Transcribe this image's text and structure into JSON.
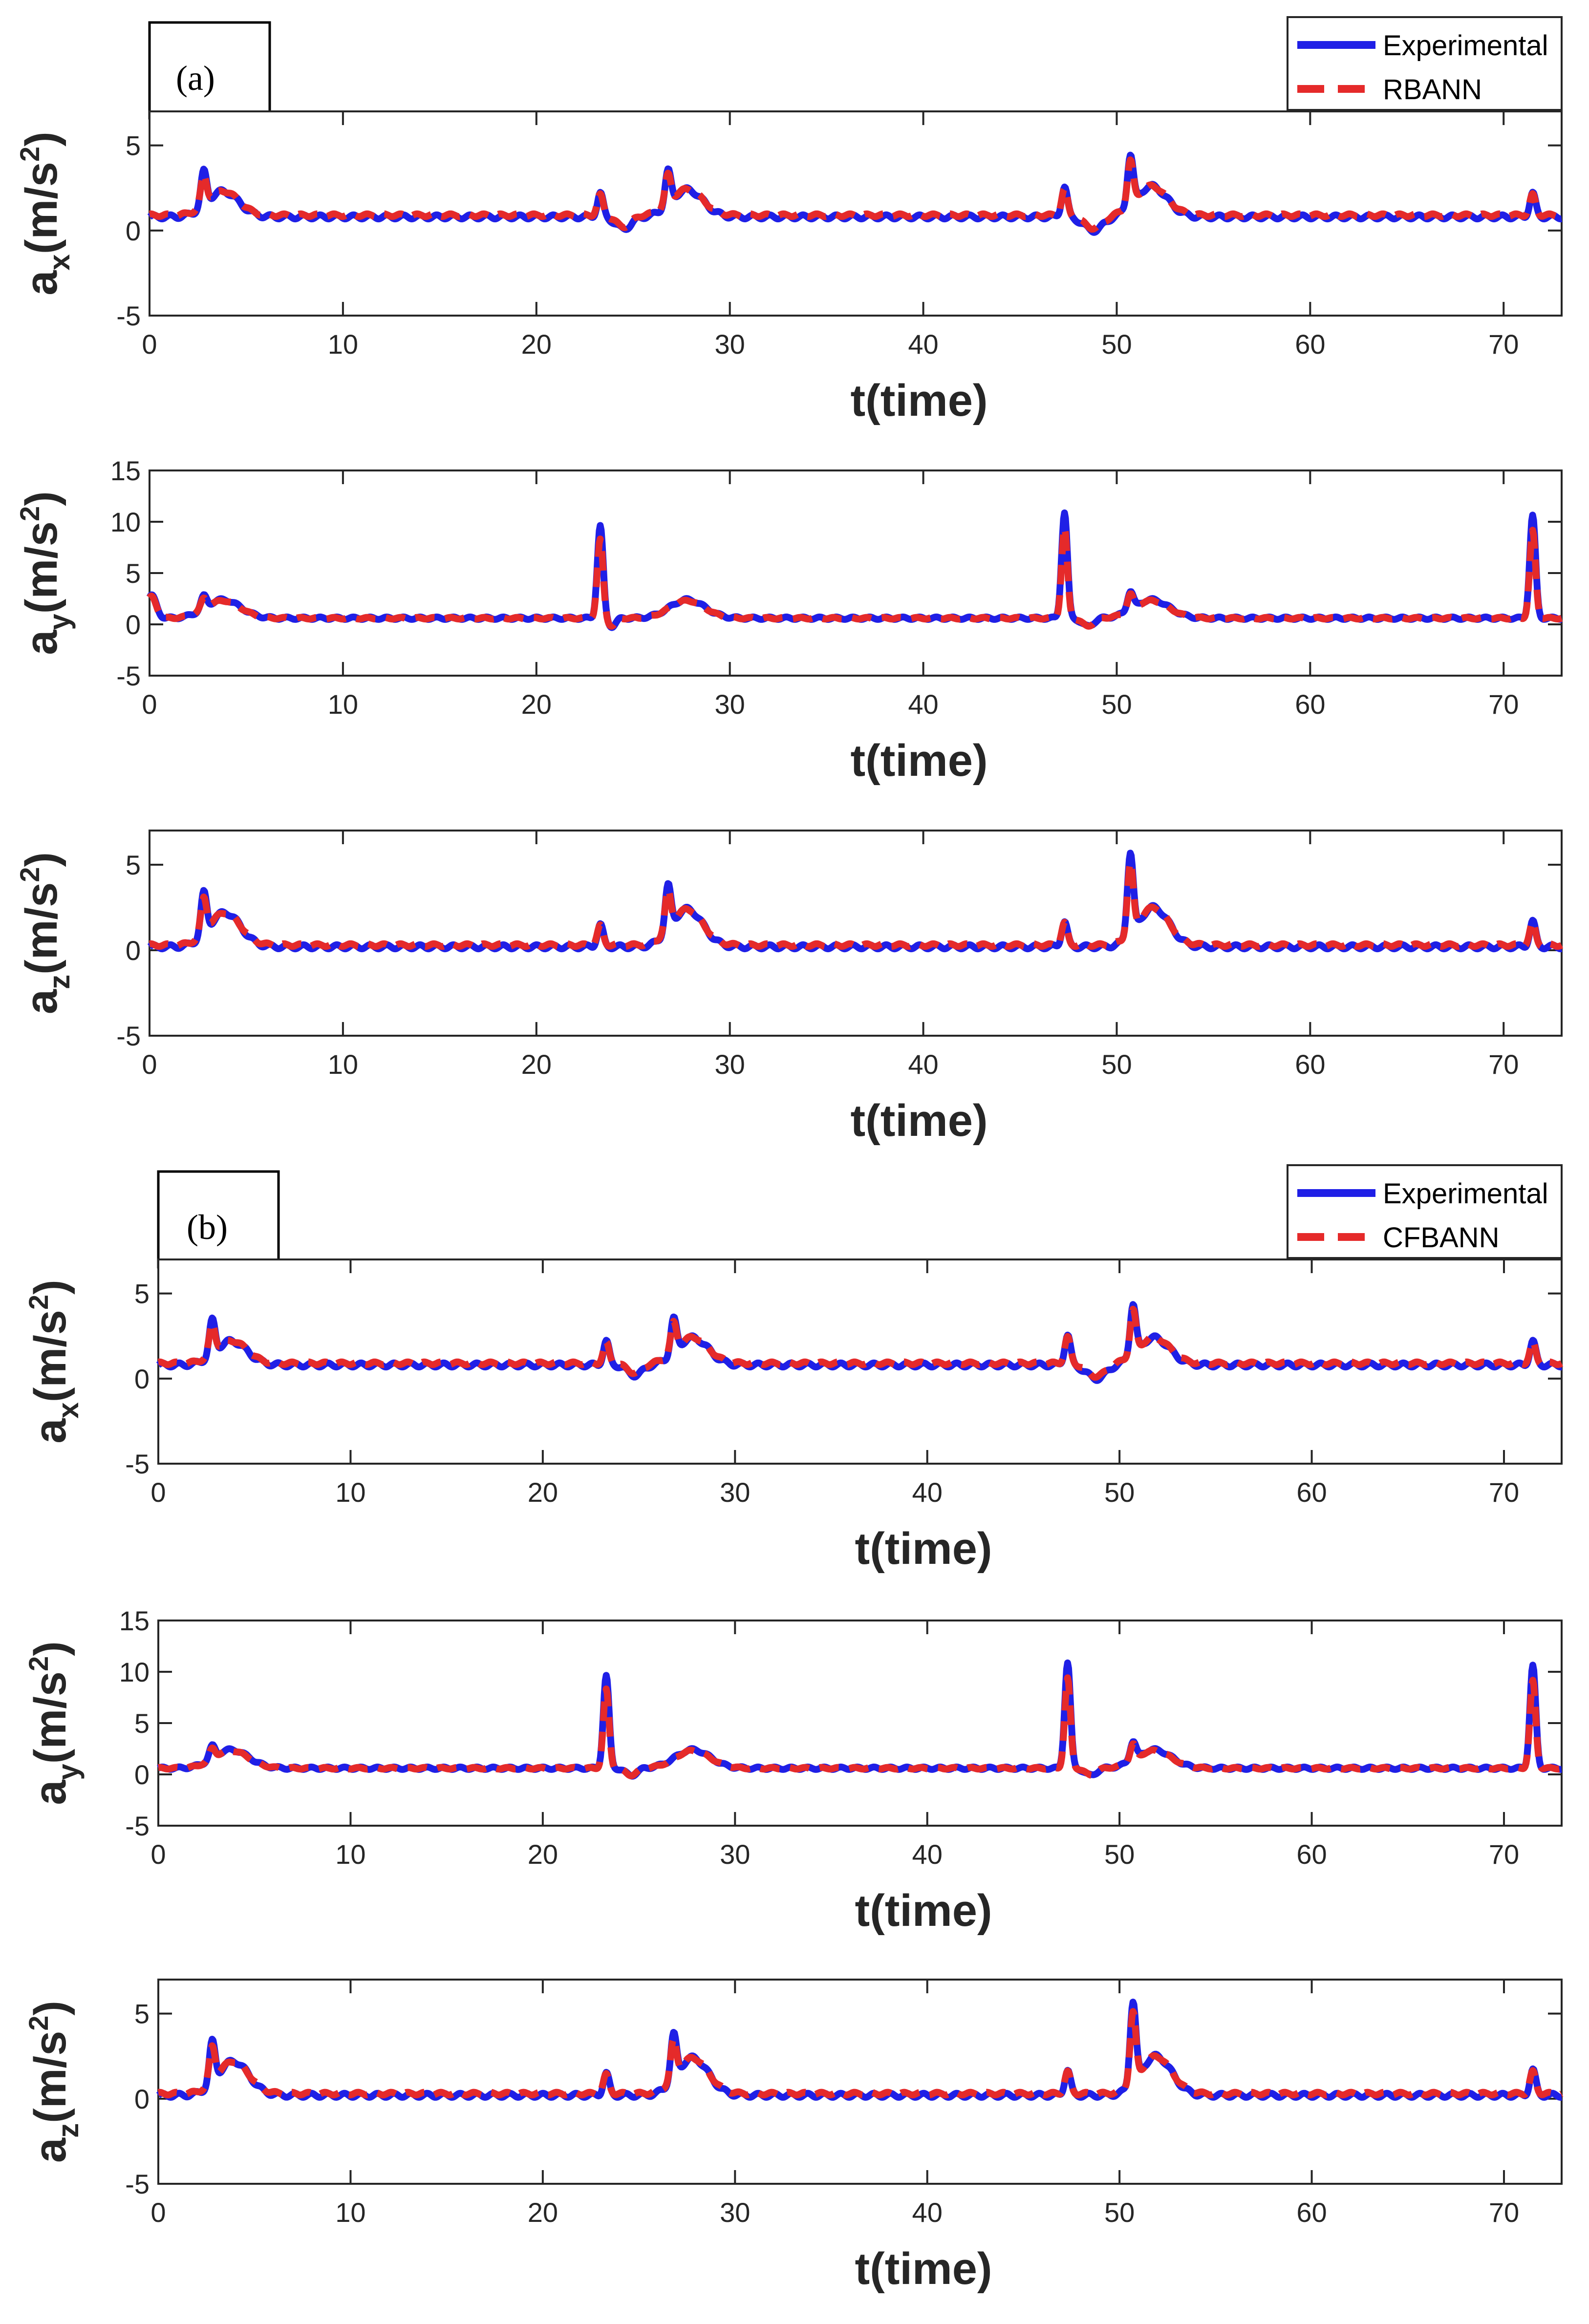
{
  "colors": {
    "experimental": "#1f1fe6",
    "predicted": "#e52a2a",
    "axis": "#262626"
  },
  "figure": {
    "panel_labels": [
      "(a)",
      "(b)"
    ],
    "legends": [
      {
        "experimental": "Experimental",
        "model": "RBANN"
      },
      {
        "experimental": "Experimental",
        "model": "CFBANN"
      }
    ]
  },
  "chart_data": [
    {
      "type": "line",
      "group": "(a)",
      "model": "RBANN",
      "variable": "ax",
      "ylabel_base": "a",
      "ylabel_sub": "x",
      "ylabel_unit": "(m/s",
      "ylabel_sup": "2",
      "ylabel_close": ")",
      "xlabel": "t(time)",
      "xlim": [
        0,
        73
      ],
      "ylim": [
        -5,
        7
      ],
      "xticks": [
        0,
        10,
        20,
        30,
        40,
        50,
        60,
        70
      ],
      "yticks": [
        -5,
        0,
        5
      ],
      "baseline": 0.8,
      "predicted_offset": 0.1,
      "events": [
        {
          "t": 2.8,
          "amp": 2.0,
          "width": 0.15
        },
        {
          "t": 3.8,
          "amp": 1.5,
          "width": 0.8
        },
        {
          "t": 23.3,
          "amp": 1.4,
          "width": 0.15
        },
        {
          "t": 24.5,
          "amp": -0.7,
          "width": 0.4
        },
        {
          "t": 26.8,
          "amp": 2.0,
          "width": 0.15
        },
        {
          "t": 27.8,
          "amp": 1.6,
          "width": 0.8
        },
        {
          "t": 47.3,
          "amp": 1.8,
          "width": 0.15
        },
        {
          "t": 48.8,
          "amp": -0.8,
          "width": 0.5
        },
        {
          "t": 50.7,
          "amp": 3.0,
          "width": 0.15
        },
        {
          "t": 51.8,
          "amp": 1.8,
          "width": 0.8
        },
        {
          "t": 71.5,
          "amp": 1.4,
          "width": 0.15
        }
      ],
      "series": [
        {
          "name": "Experimental",
          "style": "solid"
        },
        {
          "name": "RBANN",
          "style": "dashed"
        }
      ]
    },
    {
      "type": "line",
      "group": "(a)",
      "model": "RBANN",
      "variable": "ay",
      "ylabel_base": "a",
      "ylabel_sub": "y",
      "ylabel_unit": "(m/s",
      "ylabel_sup": "2",
      "ylabel_close": ")",
      "xlabel": "t(time)",
      "xlim": [
        0,
        73
      ],
      "ylim": [
        -5,
        15
      ],
      "xticks": [
        0,
        10,
        20,
        30,
        40,
        50,
        60,
        70
      ],
      "yticks": [
        -5,
        0,
        5,
        10,
        15
      ],
      "baseline": 0.6,
      "predicted_offset": 0.0,
      "events": [
        {
          "t": 0.1,
          "amp": 2.2,
          "width": 0.25
        },
        {
          "t": 2.8,
          "amp": 1.2,
          "width": 0.15
        },
        {
          "t": 3.8,
          "amp": 1.8,
          "width": 0.9
        },
        {
          "t": 23.3,
          "amp": 9.0,
          "width": 0.15
        },
        {
          "t": 23.9,
          "amp": -0.8,
          "width": 0.2
        },
        {
          "t": 27.8,
          "amp": 1.8,
          "width": 0.9
        },
        {
          "t": 47.3,
          "amp": 10.3,
          "width": 0.15
        },
        {
          "t": 48.5,
          "amp": -0.8,
          "width": 0.3
        },
        {
          "t": 50.7,
          "amp": 1.8,
          "width": 0.15
        },
        {
          "t": 51.8,
          "amp": 1.8,
          "width": 0.9
        },
        {
          "t": 71.5,
          "amp": 10.0,
          "width": 0.15
        }
      ],
      "series": [
        {
          "name": "Experimental",
          "style": "solid"
        },
        {
          "name": "RBANN",
          "style": "dashed"
        }
      ]
    },
    {
      "type": "line",
      "group": "(a)",
      "model": "RBANN",
      "variable": "az",
      "ylabel_base": "a",
      "ylabel_sub": "z",
      "ylabel_unit": "(m/s",
      "ylabel_sup": "2",
      "ylabel_close": ")",
      "xlabel": "t(time)",
      "xlim": [
        0,
        73
      ],
      "ylim": [
        -5,
        7
      ],
      "xticks": [
        0,
        10,
        20,
        30,
        40,
        50,
        60,
        70
      ],
      "yticks": [
        -5,
        0,
        5
      ],
      "baseline": 0.2,
      "predicted_offset": 0.1,
      "events": [
        {
          "t": 2.8,
          "amp": 2.4,
          "width": 0.15
        },
        {
          "t": 3.9,
          "amp": 2.0,
          "width": 0.8
        },
        {
          "t": 23.3,
          "amp": 1.3,
          "width": 0.15
        },
        {
          "t": 26.8,
          "amp": 2.6,
          "width": 0.15
        },
        {
          "t": 27.8,
          "amp": 2.2,
          "width": 0.8
        },
        {
          "t": 47.3,
          "amp": 1.5,
          "width": 0.15
        },
        {
          "t": 50.7,
          "amp": 4.8,
          "width": 0.15
        },
        {
          "t": 51.9,
          "amp": 2.3,
          "width": 0.8
        },
        {
          "t": 71.5,
          "amp": 1.5,
          "width": 0.15
        }
      ],
      "series": [
        {
          "name": "Experimental",
          "style": "solid"
        },
        {
          "name": "RBANN",
          "style": "dashed"
        }
      ]
    },
    {
      "type": "line",
      "group": "(b)",
      "model": "CFBANN",
      "variable": "ax",
      "ylabel_base": "a",
      "ylabel_sub": "x",
      "ylabel_unit": "(m/s",
      "ylabel_sup": "2",
      "ylabel_close": ")",
      "xlabel": "t(time)",
      "xlim": [
        0,
        73
      ],
      "ylim": [
        -5,
        7
      ],
      "xticks": [
        0,
        10,
        20,
        30,
        40,
        50,
        60,
        70
      ],
      "yticks": [
        -5,
        0,
        5
      ],
      "baseline": 0.8,
      "predicted_offset": 0.1,
      "events": [
        {
          "t": 2.8,
          "amp": 2.0,
          "width": 0.15
        },
        {
          "t": 3.8,
          "amp": 1.4,
          "width": 0.8
        },
        {
          "t": 23.3,
          "amp": 1.4,
          "width": 0.15
        },
        {
          "t": 24.8,
          "amp": -0.6,
          "width": 0.4
        },
        {
          "t": 26.8,
          "amp": 2.0,
          "width": 0.15
        },
        {
          "t": 27.8,
          "amp": 1.6,
          "width": 0.8
        },
        {
          "t": 47.3,
          "amp": 1.8,
          "width": 0.15
        },
        {
          "t": 48.8,
          "amp": -0.8,
          "width": 0.5
        },
        {
          "t": 50.7,
          "amp": 3.0,
          "width": 0.15
        },
        {
          "t": 51.8,
          "amp": 1.6,
          "width": 0.8
        },
        {
          "t": 71.5,
          "amp": 1.4,
          "width": 0.15
        }
      ],
      "series": [
        {
          "name": "Experimental",
          "style": "solid"
        },
        {
          "name": "CFBANN",
          "style": "dashed"
        }
      ]
    },
    {
      "type": "line",
      "group": "(b)",
      "model": "CFBANN",
      "variable": "ay",
      "ylabel_base": "a",
      "ylabel_sub": "y",
      "ylabel_unit": "(m/s",
      "ylabel_sup": "2",
      "ylabel_close": ")",
      "xlabel": "t(time)",
      "xlim": [
        0,
        73
      ],
      "ylim": [
        -5,
        15
      ],
      "xticks": [
        0,
        10,
        20,
        30,
        40,
        50,
        60,
        70
      ],
      "yticks": [
        -5,
        0,
        5,
        10,
        15
      ],
      "baseline": 0.6,
      "predicted_offset": 0.0,
      "events": [
        {
          "t": 2.8,
          "amp": 1.2,
          "width": 0.15
        },
        {
          "t": 3.8,
          "amp": 1.8,
          "width": 0.9
        },
        {
          "t": 23.3,
          "amp": 9.0,
          "width": 0.15
        },
        {
          "t": 24.6,
          "amp": -0.7,
          "width": 0.3
        },
        {
          "t": 27.8,
          "amp": 1.8,
          "width": 0.9
        },
        {
          "t": 47.3,
          "amp": 10.3,
          "width": 0.15
        },
        {
          "t": 48.5,
          "amp": -0.7,
          "width": 0.3
        },
        {
          "t": 50.7,
          "amp": 1.8,
          "width": 0.15
        },
        {
          "t": 51.8,
          "amp": 1.8,
          "width": 0.9
        },
        {
          "t": 71.5,
          "amp": 10.0,
          "width": 0.15
        }
      ],
      "series": [
        {
          "name": "Experimental",
          "style": "solid"
        },
        {
          "name": "CFBANN",
          "style": "dashed"
        }
      ]
    },
    {
      "type": "line",
      "group": "(b)",
      "model": "CFBANN",
      "variable": "az",
      "ylabel_base": "a",
      "ylabel_sub": "z",
      "ylabel_unit": "(m/s",
      "ylabel_sup": "2",
      "ylabel_close": ")",
      "xlabel": "t(time)",
      "xlim": [
        0,
        73
      ],
      "ylim": [
        -5,
        7
      ],
      "xticks": [
        0,
        10,
        20,
        30,
        40,
        50,
        60,
        70
      ],
      "yticks": [
        -5,
        0,
        5
      ],
      "baseline": 0.2,
      "predicted_offset": 0.1,
      "events": [
        {
          "t": 2.8,
          "amp": 2.4,
          "width": 0.15
        },
        {
          "t": 3.9,
          "amp": 2.0,
          "width": 0.8
        },
        {
          "t": 23.3,
          "amp": 1.3,
          "width": 0.15
        },
        {
          "t": 26.8,
          "amp": 2.6,
          "width": 0.15
        },
        {
          "t": 27.8,
          "amp": 2.2,
          "width": 0.8
        },
        {
          "t": 47.3,
          "amp": 1.5,
          "width": 0.15
        },
        {
          "t": 50.7,
          "amp": 4.8,
          "width": 0.15
        },
        {
          "t": 51.9,
          "amp": 2.3,
          "width": 0.8
        },
        {
          "t": 71.5,
          "amp": 1.5,
          "width": 0.15
        }
      ],
      "series": [
        {
          "name": "Experimental",
          "style": "solid"
        },
        {
          "name": "CFBANN",
          "style": "dashed"
        }
      ]
    }
  ]
}
